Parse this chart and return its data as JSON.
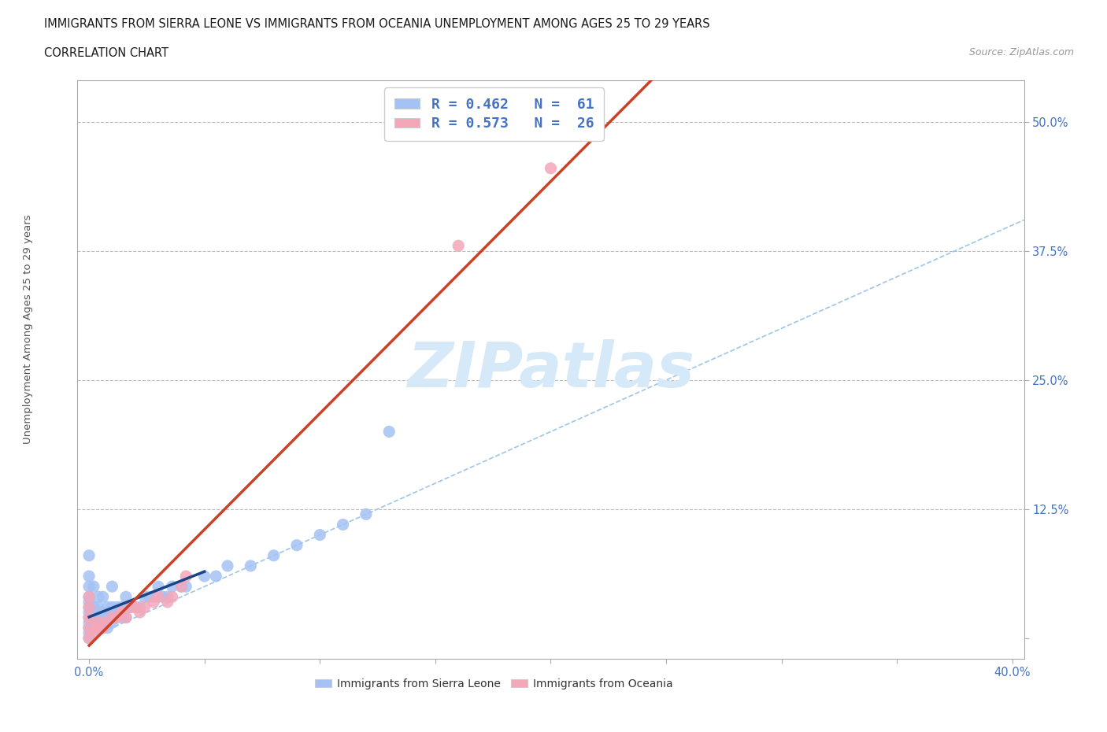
{
  "title_line1": "IMMIGRANTS FROM SIERRA LEONE VS IMMIGRANTS FROM OCEANIA UNEMPLOYMENT AMONG AGES 25 TO 29 YEARS",
  "title_line2": "CORRELATION CHART",
  "source_text": "Source: ZipAtlas.com",
  "ylabel": "Unemployment Among Ages 25 to 29 years",
  "xlim": [
    -0.005,
    0.405
  ],
  "ylim": [
    -0.02,
    0.54
  ],
  "xtick_positions": [
    0.0,
    0.05,
    0.1,
    0.15,
    0.2,
    0.25,
    0.3,
    0.35,
    0.4
  ],
  "ytick_positions": [
    0.0,
    0.125,
    0.25,
    0.375,
    0.5
  ],
  "color_sierra": "#a4c2f4",
  "color_oceania": "#f4a7b9",
  "color_trend_sierra": "#1c4587",
  "color_trend_oceania": "#cc4125",
  "color_diag": "#9fc5e8",
  "watermark_color": "#d6e9f8",
  "grid_color": "#bbbbbb",
  "sierra_x": [
    0.0,
    0.0,
    0.0,
    0.0,
    0.0,
    0.0,
    0.0,
    0.0,
    0.0,
    0.0,
    0.0,
    0.0,
    0.002,
    0.002,
    0.002,
    0.002,
    0.004,
    0.004,
    0.004,
    0.004,
    0.004,
    0.006,
    0.006,
    0.006,
    0.006,
    0.008,
    0.008,
    0.008,
    0.01,
    0.01,
    0.01,
    0.01,
    0.012,
    0.012,
    0.014,
    0.014,
    0.016,
    0.016,
    0.018,
    0.02,
    0.022,
    0.024,
    0.026,
    0.028,
    0.03,
    0.032,
    0.034,
    0.036,
    0.04,
    0.042,
    0.05,
    0.055,
    0.06,
    0.07,
    0.08,
    0.09,
    0.1,
    0.11,
    0.12,
    0.13
  ],
  "sierra_y": [
    0.0,
    0.005,
    0.01,
    0.015,
    0.02,
    0.025,
    0.03,
    0.035,
    0.04,
    0.05,
    0.06,
    0.08,
    0.01,
    0.02,
    0.03,
    0.05,
    0.01,
    0.015,
    0.02,
    0.03,
    0.04,
    0.01,
    0.02,
    0.025,
    0.04,
    0.01,
    0.02,
    0.03,
    0.015,
    0.02,
    0.03,
    0.05,
    0.02,
    0.03,
    0.02,
    0.03,
    0.02,
    0.04,
    0.03,
    0.03,
    0.03,
    0.04,
    0.04,
    0.04,
    0.05,
    0.04,
    0.04,
    0.05,
    0.05,
    0.05,
    0.06,
    0.06,
    0.07,
    0.07,
    0.08,
    0.09,
    0.1,
    0.11,
    0.12,
    0.2
  ],
  "oceania_x": [
    0.0,
    0.0,
    0.0,
    0.0,
    0.0,
    0.002,
    0.003,
    0.004,
    0.006,
    0.007,
    0.01,
    0.012,
    0.014,
    0.016,
    0.018,
    0.02,
    0.022,
    0.024,
    0.028,
    0.03,
    0.034,
    0.036,
    0.04,
    0.042,
    0.16,
    0.2
  ],
  "oceania_y": [
    0.0,
    0.01,
    0.02,
    0.03,
    0.04,
    0.005,
    0.01,
    0.015,
    0.01,
    0.015,
    0.02,
    0.02,
    0.025,
    0.02,
    0.03,
    0.03,
    0.025,
    0.03,
    0.035,
    0.04,
    0.035,
    0.04,
    0.05,
    0.06,
    0.38,
    0.455
  ],
  "sierra_trend_x": [
    0.0,
    0.048
  ],
  "sierra_trend_params": [
    1.45,
    0.005
  ],
  "oceania_trend_x": [
    0.0,
    0.405
  ],
  "oceania_trend_params": [
    1.12,
    0.01
  ]
}
